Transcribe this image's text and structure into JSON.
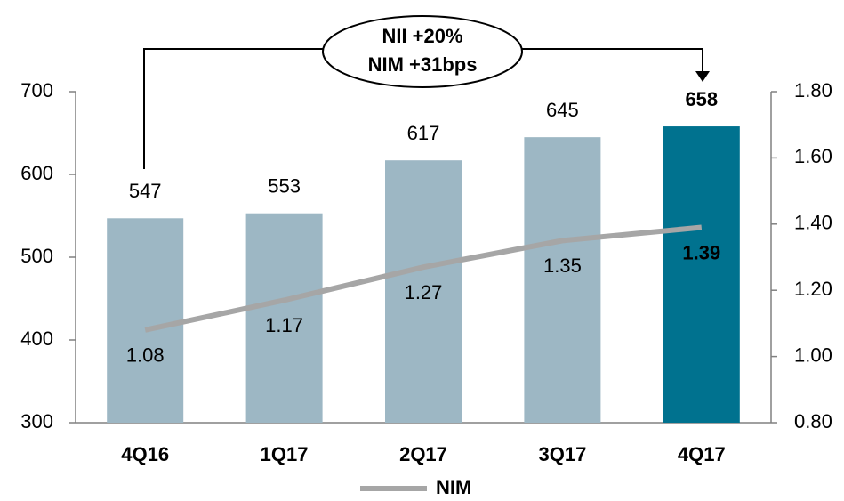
{
  "chart_data": {
    "type": "bar",
    "categories": [
      "4Q16",
      "1Q17",
      "2Q17",
      "3Q17",
      "4Q17"
    ],
    "category_colors": [
      "#a9c3d0",
      "#b9cfda",
      "#8eaebd",
      "#b9cfda",
      "#000000"
    ],
    "series": [
      {
        "type": "bar",
        "values": [
          547,
          553,
          617,
          645,
          658
        ],
        "colors": [
          "#9db7c4",
          "#9db7c4",
          "#9db7c4",
          "#9db7c4",
          "#00728f"
        ]
      },
      {
        "type": "line",
        "name": "NIM",
        "axis": "y2",
        "color": "#a6a6a6",
        "values": [
          1.08,
          1.17,
          1.27,
          1.35,
          1.39
        ]
      }
    ],
    "ylim": [
      300,
      700
    ],
    "yticks": [
      300,
      400,
      500,
      600,
      700
    ],
    "y2lim": [
      0.8,
      1.8
    ],
    "y2ticks": [
      {
        "value": 0.8,
        "label": "0.80"
      },
      {
        "value": 1.0,
        "label": "1.00"
      },
      {
        "value": 1.2,
        "label": "1.20"
      },
      {
        "value": 1.4,
        "label": "1.40"
      },
      {
        "value": 1.6,
        "label": "1.60"
      },
      {
        "value": 1.8,
        "label": "1.80"
      }
    ],
    "annotation": [
      "NII +20%",
      "NIM +31bps"
    ],
    "legend": "bottom"
  }
}
